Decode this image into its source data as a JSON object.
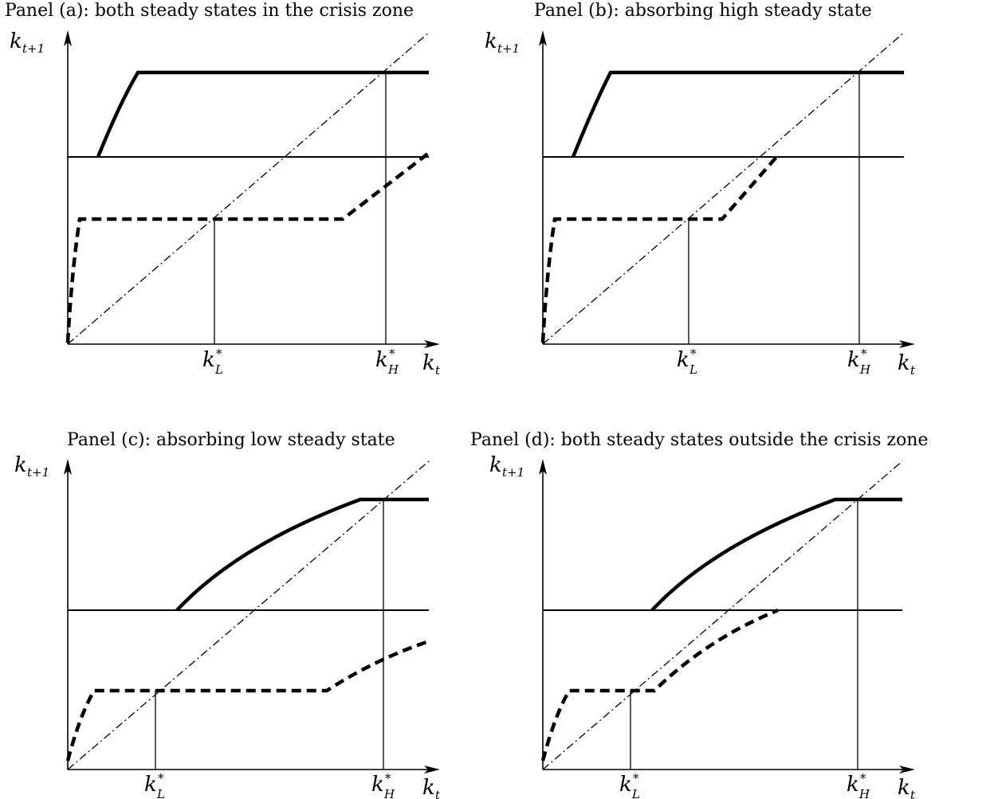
{
  "figure": {
    "panels": [
      {
        "id": "a",
        "title": "Panel (a): both steady states in the crisis zone",
        "y_axis_label": {
          "base": "k",
          "sub": "t+1"
        },
        "x_axis_label": {
          "base": "k",
          "sub": "t"
        },
        "tick_labels": [
          {
            "base": "k",
            "sup": "*",
            "sub": "L"
          },
          {
            "base": "k",
            "sup": "*",
            "sub": "H"
          }
        ]
      },
      {
        "id": "b",
        "title": "Panel (b): absorbing high steady state",
        "y_axis_label": {
          "base": "k",
          "sub": "t+1"
        },
        "x_axis_label": {
          "base": "k",
          "sub": "t"
        },
        "tick_labels": [
          {
            "base": "k",
            "sup": "*",
            "sub": "L"
          },
          {
            "base": "k",
            "sup": "*",
            "sub": "H"
          }
        ]
      },
      {
        "id": "c",
        "title": "Panel (c): absorbing low steady state",
        "y_axis_label": {
          "base": "k",
          "sub": "t+1"
        },
        "x_axis_label": {
          "base": "k",
          "sub": "t"
        },
        "tick_labels": [
          {
            "base": "k",
            "sup": "*",
            "sub": "L"
          },
          {
            "base": "k",
            "sup": "*",
            "sub": "H"
          }
        ]
      },
      {
        "id": "d",
        "title": "Panel (d): both steady states outside the crisis zone",
        "y_axis_label": {
          "base": "k",
          "sub": "t+1"
        },
        "x_axis_label": {
          "base": "k",
          "sub": "t"
        },
        "tick_labels": [
          {
            "base": "k",
            "sup": "*",
            "sub": "L"
          },
          {
            "base": "k",
            "sup": "*",
            "sub": "H"
          }
        ]
      }
    ]
  }
}
